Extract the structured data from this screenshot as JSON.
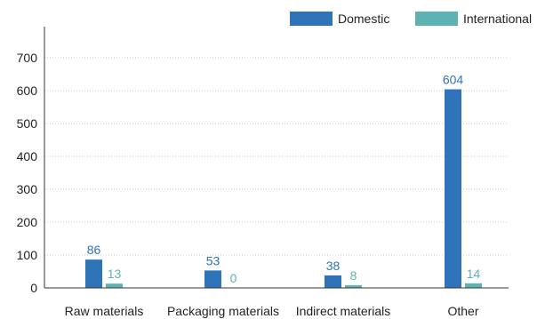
{
  "chart_data": {
    "type": "bar",
    "categories": [
      "Raw materials",
      "Packaging materials",
      "Indirect materials",
      "Other"
    ],
    "series": [
      {
        "name": "Domestic",
        "values": [
          86,
          53,
          38,
          604
        ],
        "color": "#2f73b8"
      },
      {
        "name": "International",
        "values": [
          13,
          0,
          8,
          14
        ],
        "color": "#5bb3b3"
      }
    ],
    "ylim": [
      0,
      700
    ],
    "yticks": [
      0,
      100,
      200,
      300,
      400,
      500,
      600,
      700
    ],
    "grid": true,
    "legend_position": "top-right"
  }
}
